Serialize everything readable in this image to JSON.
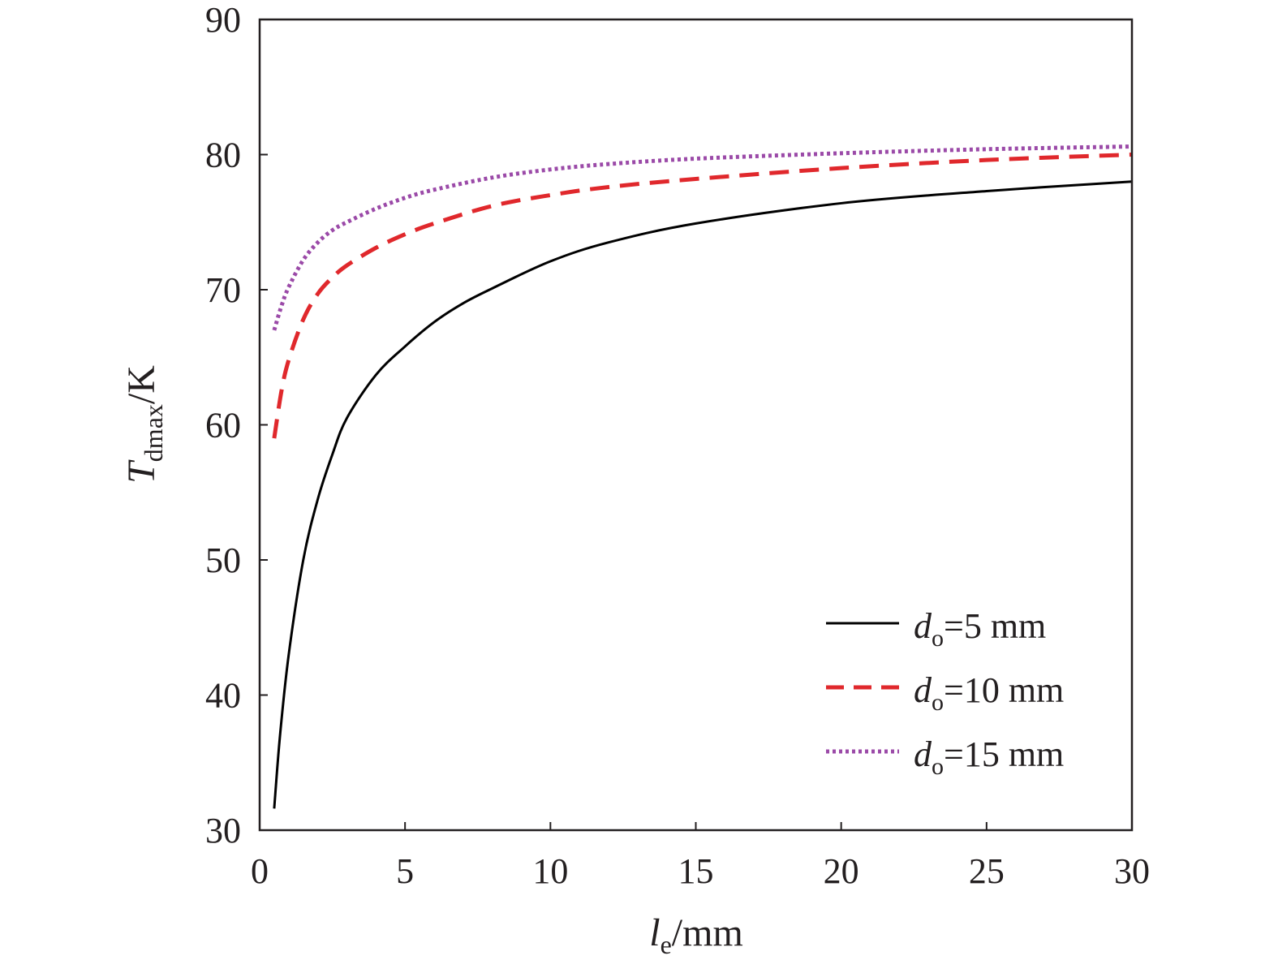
{
  "chart_data": {
    "type": "line",
    "xlabel": {
      "main": "l",
      "sub": "e",
      "rest": "/mm"
    },
    "ylabel": {
      "main": "T",
      "sub": "dmax",
      "rest": "/K"
    },
    "xlim": [
      0,
      30
    ],
    "ylim": [
      30,
      90
    ],
    "x_ticks": [
      "0",
      "5",
      "10",
      "15",
      "20",
      "25",
      "30"
    ],
    "y_ticks": [
      "30",
      "40",
      "50",
      "60",
      "70",
      "80",
      "90"
    ],
    "grid": false,
    "legend_position": "bottom-right",
    "series": [
      {
        "name": {
          "main": "d",
          "sub": "o",
          "rest": "=5 mm"
        },
        "style": "solid",
        "color": "#000000",
        "x": [
          0.5,
          0.7,
          1,
          1.5,
          2,
          2.5,
          3,
          4,
          5,
          6,
          7,
          8,
          10,
          12,
          15,
          20,
          25,
          30
        ],
        "y": [
          31.6,
          37,
          43,
          50,
          54.5,
          57.8,
          60.5,
          63.7,
          65.8,
          67.6,
          69.0,
          70.1,
          72.1,
          73.5,
          74.9,
          76.4,
          77.3,
          78.0
        ]
      },
      {
        "name": {
          "main": "d",
          "sub": "o",
          "rest": "=10 mm"
        },
        "style": "dashed",
        "color": "#e0282c",
        "x": [
          0.5,
          0.75,
          1,
          1.5,
          2,
          2.5,
          3,
          4,
          5,
          6,
          8,
          10,
          12,
          15,
          20,
          25,
          30
        ],
        "y": [
          59,
          62.5,
          64.8,
          67.8,
          69.7,
          70.9,
          71.8,
          73.1,
          74.1,
          74.9,
          76.2,
          77.0,
          77.6,
          78.2,
          79.0,
          79.6,
          80.0
        ]
      },
      {
        "name": {
          "main": "d",
          "sub": "o",
          "rest": "=15 mm"
        },
        "style": "dotted",
        "color": "#9b4aa8",
        "x": [
          0.5,
          0.75,
          1,
          1.5,
          2,
          2.5,
          3,
          4,
          5,
          6,
          8,
          10,
          12,
          15,
          20,
          25,
          30
        ],
        "y": [
          67,
          68.8,
          70.2,
          72.2,
          73.5,
          74.4,
          75.0,
          76.0,
          76.8,
          77.4,
          78.3,
          78.9,
          79.3,
          79.7,
          80.1,
          80.4,
          80.6
        ]
      }
    ]
  }
}
